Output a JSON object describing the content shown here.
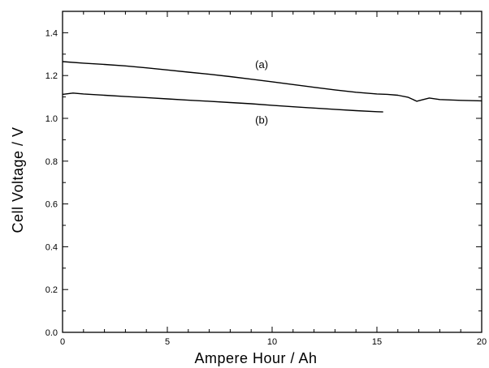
{
  "chart_data": {
    "type": "line",
    "title": "",
    "xlabel": "Ampere Hour / Ah",
    "ylabel": "Cell Voltage / V",
    "xlim": [
      0,
      20
    ],
    "ylim": [
      0.0,
      1.5
    ],
    "grid": false,
    "legend": "none",
    "x_ticks": [
      {
        "value": 0,
        "label": "0"
      },
      {
        "value": 5,
        "label": "5"
      },
      {
        "value": 10,
        "label": "10"
      },
      {
        "value": 15,
        "label": "15"
      },
      {
        "value": 20,
        "label": "20"
      }
    ],
    "y_ticks": [
      {
        "value": 0.0,
        "label": "0.0"
      },
      {
        "value": 0.2,
        "label": "0.2"
      },
      {
        "value": 0.4,
        "label": "0.4"
      },
      {
        "value": 0.6,
        "label": "0.6"
      },
      {
        "value": 0.8,
        "label": "0.8"
      },
      {
        "value": 1.0,
        "label": "1.0"
      },
      {
        "value": 1.2,
        "label": "1.2"
      },
      {
        "value": 1.4,
        "label": "1.4"
      }
    ],
    "series": [
      {
        "name": "(a)",
        "label_anchor": {
          "x": 9.5,
          "y": 1.235
        },
        "points": [
          [
            0,
            1.265
          ],
          [
            1,
            1.258
          ],
          [
            2,
            1.252
          ],
          [
            3,
            1.245
          ],
          [
            4,
            1.236
          ],
          [
            5,
            1.226
          ],
          [
            6,
            1.216
          ],
          [
            7,
            1.206
          ],
          [
            8,
            1.195
          ],
          [
            9,
            1.183
          ],
          [
            10,
            1.171
          ],
          [
            11,
            1.158
          ],
          [
            12,
            1.145
          ],
          [
            13,
            1.133
          ],
          [
            14,
            1.122
          ],
          [
            15,
            1.114
          ],
          [
            15.5,
            1.112
          ],
          [
            16,
            1.108
          ],
          [
            16.5,
            1.098
          ],
          [
            16.9,
            1.08
          ],
          [
            17.1,
            1.085
          ],
          [
            17.5,
            1.095
          ],
          [
            18,
            1.088
          ],
          [
            19,
            1.084
          ],
          [
            20,
            1.082
          ]
        ]
      },
      {
        "name": "(b)",
        "label_anchor": {
          "x": 9.5,
          "y": 0.975
        },
        "points": [
          [
            0,
            1.112
          ],
          [
            0.5,
            1.118
          ],
          [
            1,
            1.114
          ],
          [
            2,
            1.108
          ],
          [
            3,
            1.102
          ],
          [
            4,
            1.097
          ],
          [
            5,
            1.091
          ],
          [
            6,
            1.085
          ],
          [
            7,
            1.08
          ],
          [
            8,
            1.074
          ],
          [
            9,
            1.068
          ],
          [
            10,
            1.061
          ],
          [
            11,
            1.054
          ],
          [
            12,
            1.048
          ],
          [
            13,
            1.042
          ],
          [
            14,
            1.036
          ],
          [
            15,
            1.031
          ],
          [
            15.3,
            1.03
          ]
        ]
      }
    ]
  }
}
